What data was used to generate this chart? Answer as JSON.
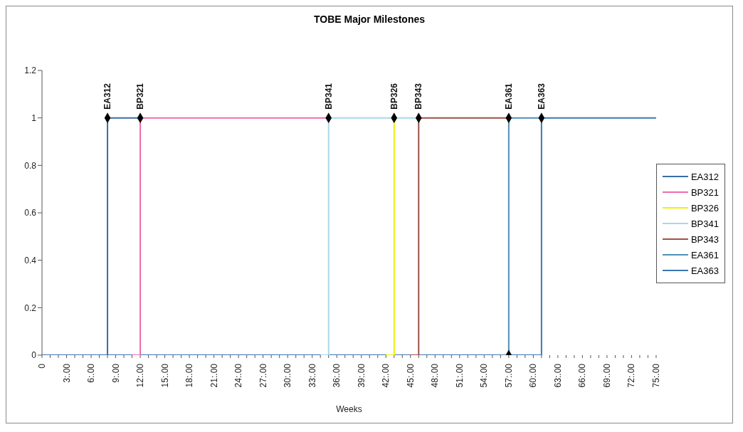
{
  "chart_data": {
    "type": "step",
    "title": "TOBE Major Milestones",
    "xlabel": "Weeks",
    "categories": [
      "0",
      null,
      null,
      "3:.00",
      null,
      null,
      "6:.00",
      null,
      null,
      "9:.00",
      null,
      null,
      "12:.00",
      null,
      null,
      "15:.00",
      null,
      null,
      "18:.00",
      null,
      null,
      "21:.00",
      null,
      null,
      "24:.00",
      null,
      null,
      "27:.00",
      null,
      null,
      "30:.00",
      null,
      null,
      "33:.00",
      null,
      null,
      "36:.00",
      null,
      null,
      "39:.00",
      null,
      null,
      "42:.00",
      null,
      null,
      "45:.00",
      null,
      null,
      "48:.00",
      null,
      null,
      "51:.00",
      null,
      null,
      "54:.00",
      null,
      null,
      "57:.00",
      null,
      null,
      "60:.00",
      null,
      null,
      "63:.00",
      null,
      null,
      "66:.00",
      null,
      null,
      "69:.00",
      null,
      null,
      "72:.00",
      null,
      null,
      "75:.00"
    ],
    "ylim": [
      0,
      1.2
    ],
    "yticks": [
      0,
      0.2,
      0.4,
      0.6,
      0.8,
      1,
      1.2
    ],
    "grid": false,
    "legend": "right",
    "marker": "none",
    "line_style": "solid",
    "series": [
      {
        "name": "EA312",
        "color": "#3a6ea5",
        "values": [
          null,
          null,
          null,
          null,
          null,
          null,
          null,
          0,
          1,
          1,
          1,
          1,
          1,
          null,
          null,
          null,
          null,
          null,
          null,
          null,
          null,
          null,
          null,
          null,
          null,
          null,
          null,
          null,
          null,
          null,
          null,
          null,
          null,
          null,
          null,
          null,
          null,
          null,
          null,
          null,
          null,
          null,
          null,
          null,
          null,
          null,
          null,
          null,
          null,
          null,
          null,
          null,
          null,
          null,
          null,
          null,
          null,
          null,
          null,
          null,
          null,
          null,
          null,
          null,
          null,
          null,
          null,
          null,
          null,
          null,
          null,
          null,
          null,
          null,
          null,
          null
        ]
      },
      {
        "name": "BP321",
        "color": "#f06bb0",
        "values": [
          null,
          null,
          null,
          null,
          null,
          null,
          null,
          null,
          null,
          null,
          null,
          0,
          1,
          1,
          1,
          1,
          1,
          1,
          1,
          1,
          1,
          1,
          1,
          1,
          1,
          1,
          1,
          1,
          1,
          1,
          1,
          1,
          1,
          1,
          1,
          1,
          null,
          null,
          null,
          null,
          null,
          null,
          null,
          null,
          null,
          null,
          null,
          null,
          null,
          null,
          null,
          null,
          null,
          null,
          null,
          null,
          null,
          null,
          null,
          null,
          null,
          null,
          null,
          null,
          null,
          null,
          null,
          null,
          null,
          null,
          null,
          null,
          null,
          null,
          null,
          null
        ]
      },
      {
        "name": "BP326",
        "color": "#f0f000",
        "values": [
          null,
          null,
          null,
          null,
          null,
          null,
          null,
          null,
          null,
          null,
          null,
          null,
          null,
          null,
          null,
          null,
          null,
          null,
          null,
          null,
          null,
          null,
          null,
          null,
          null,
          null,
          null,
          null,
          null,
          null,
          null,
          null,
          null,
          null,
          null,
          null,
          null,
          null,
          null,
          null,
          null,
          null,
          0,
          1,
          null,
          null,
          null,
          null,
          null,
          null,
          null,
          null,
          null,
          null,
          null,
          null,
          null,
          null,
          null,
          null,
          null,
          null,
          null,
          null,
          null,
          null,
          null,
          null,
          null,
          null,
          null,
          null,
          null,
          null,
          null,
          null
        ]
      },
      {
        "name": "BP341",
        "color": "#a8d8ea",
        "values": [
          null,
          null,
          null,
          null,
          null,
          null,
          null,
          null,
          null,
          null,
          null,
          null,
          null,
          null,
          null,
          null,
          null,
          null,
          null,
          null,
          null,
          null,
          null,
          null,
          null,
          null,
          null,
          null,
          null,
          null,
          null,
          null,
          null,
          null,
          0,
          1,
          1,
          1,
          1,
          1,
          1,
          1,
          1,
          1,
          1,
          1,
          1,
          null,
          null,
          null,
          null,
          null,
          null,
          null,
          null,
          null,
          null,
          null,
          null,
          null,
          null,
          null,
          null,
          null,
          null,
          null,
          null,
          null,
          null,
          null,
          null,
          null,
          null,
          null,
          null,
          null
        ]
      },
      {
        "name": "BP343",
        "color": "#a0504a",
        "values": [
          null,
          null,
          null,
          null,
          null,
          null,
          null,
          null,
          null,
          null,
          null,
          null,
          null,
          null,
          null,
          null,
          null,
          null,
          null,
          null,
          null,
          null,
          null,
          null,
          null,
          null,
          null,
          null,
          null,
          null,
          null,
          null,
          null,
          null,
          null,
          null,
          null,
          null,
          null,
          null,
          null,
          null,
          null,
          null,
          null,
          0,
          1,
          1,
          1,
          1,
          1,
          1,
          1,
          1,
          1,
          1,
          1,
          1,
          null,
          null,
          null,
          null,
          null,
          null,
          null,
          null,
          null,
          null,
          null,
          null,
          null,
          null,
          null,
          null,
          null,
          null
        ]
      },
      {
        "name": "EA361",
        "color": "#4f8fb8",
        "values": [
          null,
          null,
          null,
          null,
          null,
          null,
          null,
          null,
          null,
          null,
          null,
          null,
          null,
          null,
          null,
          null,
          null,
          null,
          null,
          null,
          null,
          null,
          null,
          null,
          null,
          null,
          null,
          null,
          null,
          null,
          null,
          null,
          null,
          null,
          null,
          null,
          null,
          null,
          null,
          null,
          null,
          null,
          null,
          null,
          null,
          null,
          null,
          null,
          null,
          null,
          null,
          null,
          null,
          null,
          null,
          null,
          0,
          1,
          1,
          1,
          1,
          1,
          null,
          null,
          null,
          null,
          null,
          null,
          null,
          null,
          null,
          null,
          null,
          null,
          null,
          null
        ]
      },
      {
        "name": "EA363",
        "color": "#3c78b4",
        "values": [
          0,
          0,
          0,
          0,
          0,
          0,
          0,
          0,
          0,
          0,
          0,
          0,
          0,
          0,
          0,
          0,
          0,
          0,
          0,
          0,
          0,
          0,
          0,
          0,
          0,
          0,
          0,
          0,
          0,
          0,
          0,
          0,
          0,
          0,
          0,
          0,
          0,
          0,
          0,
          0,
          0,
          0,
          0,
          0,
          0,
          0,
          0,
          0,
          0,
          0,
          0,
          0,
          0,
          0,
          0,
          0,
          0,
          0,
          0,
          0,
          0,
          1,
          1,
          1,
          1,
          1,
          1,
          1,
          1,
          1,
          1,
          1,
          1,
          1,
          1,
          1
        ]
      },
      {
        "type": "scatter",
        "color": "#000000",
        "marker": "diamond",
        "values": [
          null,
          null,
          null,
          null,
          null,
          null,
          null,
          null,
          1,
          null,
          null,
          null,
          1,
          null,
          null,
          null,
          null,
          null,
          null,
          null,
          null,
          null,
          null,
          null,
          null,
          null,
          null,
          null,
          null,
          null,
          null,
          null,
          null,
          null,
          null,
          1,
          null,
          null,
          null,
          null,
          null,
          null,
          null,
          1,
          null,
          null,
          1,
          null,
          null,
          null,
          null,
          null,
          null,
          null,
          null,
          null,
          null,
          1,
          null,
          null,
          null,
          1,
          null,
          null,
          null,
          null,
          null,
          null,
          null,
          null,
          null,
          null,
          null,
          null,
          null,
          null
        ]
      },
      {
        "type": "scatter",
        "color": "#000000",
        "marker": "diamond",
        "values": [
          null,
          null,
          null,
          null,
          null,
          null,
          null,
          null,
          null,
          null,
          null,
          null,
          null,
          null,
          null,
          null,
          null,
          null,
          null,
          null,
          null,
          null,
          null,
          null,
          null,
          null,
          null,
          null,
          null,
          null,
          null,
          null,
          null,
          null,
          null,
          null,
          null,
          null,
          null,
          null,
          null,
          null,
          null,
          null,
          null,
          null,
          null,
          null,
          null,
          null,
          null,
          null,
          null,
          null,
          null,
          null,
          null,
          0,
          null,
          null,
          null,
          null,
          null,
          null,
          null,
          null,
          null,
          null,
          null,
          null,
          null,
          null,
          null,
          null,
          null,
          null
        ]
      }
    ],
    "annotations": [
      {
        "text": "EA312",
        "y": 1
      },
      {
        "text": "BP321",
        "y": 1
      },
      {
        "text": "BP341",
        "y": 1
      },
      {
        "text": "BP326",
        "y": 1
      },
      {
        "text": "BP343",
        "y": 1
      },
      {
        "text": "EA361",
        "y": 1
      },
      {
        "text": "EA363",
        "y": 1
      }
    ]
  }
}
